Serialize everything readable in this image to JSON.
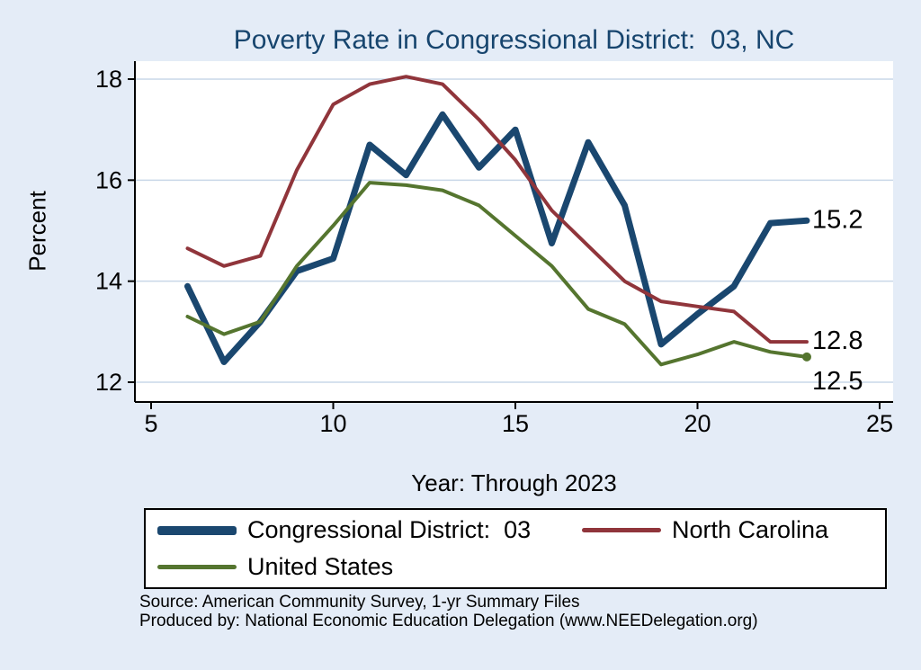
{
  "title": "Poverty Rate in Congressional District:  03, NC",
  "y_axis_label": "Percent",
  "x_axis_label": "Year: Through 2023",
  "notes": {
    "source": "Source: American Community Survey, 1-yr Summary Files",
    "produced_by": "Produced by: National Economic Education Delegation (www.NEEDelegation.org)"
  },
  "legend": {
    "items": [
      {
        "label": "Congressional District:  03",
        "color": "#1a476f",
        "sample_thickness": 10
      },
      {
        "label": "North Carolina",
        "color": "#90353b",
        "sample_thickness": 5
      },
      {
        "label": "United States",
        "color": "#55752f",
        "sample_thickness": 5
      }
    ]
  },
  "colors": {
    "background": "#e4ecf7",
    "plot_background": "#ffffff",
    "grid": "#c9d7e8",
    "axis": "#000000",
    "title": "#17456e"
  },
  "chart_data": {
    "type": "line",
    "title": "Poverty Rate in Congressional District:  03, NC",
    "xlabel": "Year: Through 2023",
    "ylabel": "Percent",
    "xlim": [
      5,
      25
    ],
    "ylim": [
      12,
      18
    ],
    "xticks": [
      5,
      10,
      15,
      20,
      25
    ],
    "yticks": [
      12,
      14,
      16,
      18
    ],
    "grid": "horizontal",
    "legend_position": "bottom",
    "x": [
      6,
      7,
      8,
      9,
      10,
      11,
      12,
      13,
      14,
      15,
      16,
      17,
      18,
      19,
      20,
      21,
      22,
      23
    ],
    "series": [
      {
        "name": "Congressional District:  03",
        "color": "#1a476f",
        "line_width": 7,
        "end_label": "15.2",
        "values": [
          13.9,
          12.4,
          13.2,
          14.2,
          14.45,
          16.7,
          16.1,
          17.3,
          16.25,
          17.0,
          14.75,
          16.75,
          15.5,
          12.75,
          13.35,
          13.9,
          15.15,
          15.2
        ]
      },
      {
        "name": "North Carolina",
        "color": "#90353b",
        "line_width": 4,
        "end_label": "12.8",
        "values": [
          14.65,
          14.3,
          14.5,
          16.2,
          17.5,
          17.9,
          18.05,
          17.9,
          17.2,
          16.4,
          15.4,
          14.7,
          14.0,
          13.6,
          13.5,
          13.4,
          12.8,
          12.8
        ]
      },
      {
        "name": "United States",
        "color": "#55752f",
        "line_width": 4,
        "end_label": "12.5",
        "values": [
          13.3,
          12.95,
          13.2,
          14.3,
          15.1,
          15.95,
          15.9,
          15.8,
          15.5,
          14.9,
          14.3,
          13.45,
          13.15,
          12.35,
          12.55,
          12.8,
          12.6,
          12.5
        ]
      }
    ]
  }
}
